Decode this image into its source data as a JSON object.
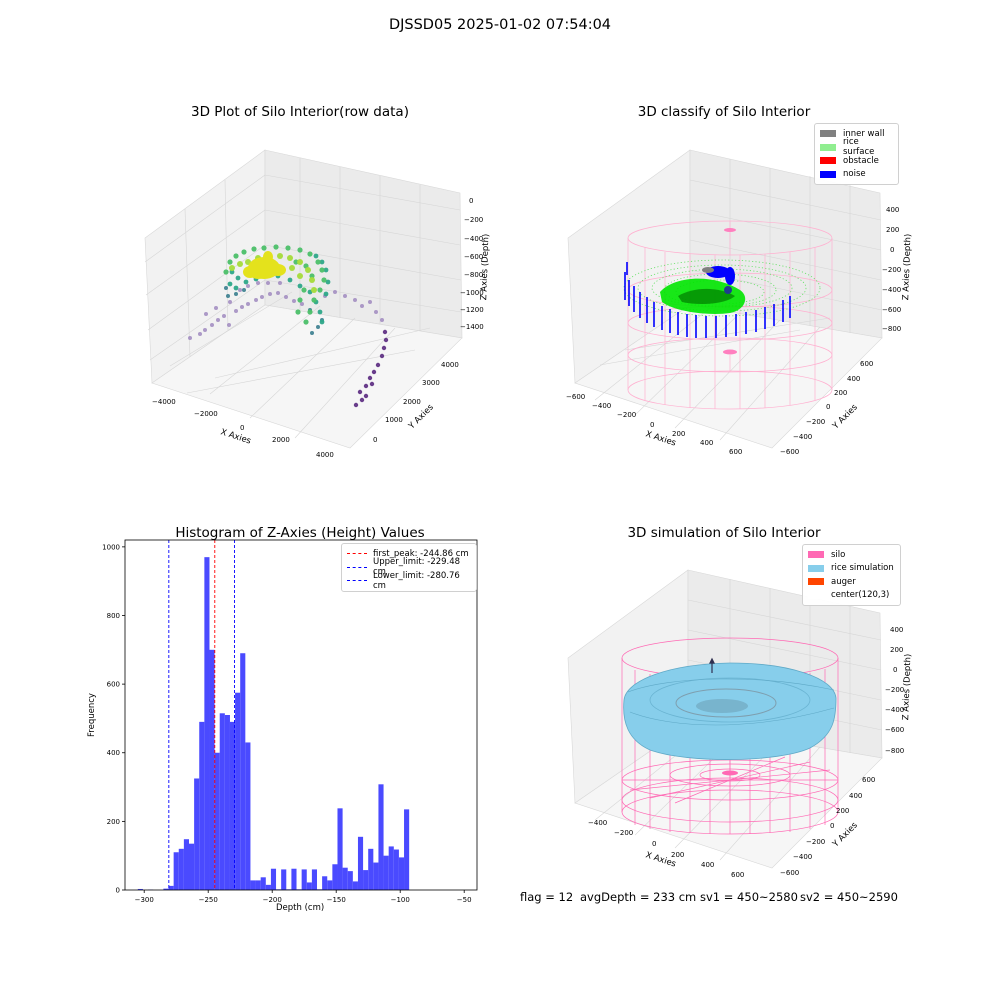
{
  "suptitle": "DJSSD05 2025-01-02 07:54:04",
  "panels": {
    "raw": {
      "title": "3D Plot of Silo Interior(row data)",
      "xlabel": "X Axies",
      "ylabel": "Y Axies",
      "zlabel": "Z Axies (Depth)",
      "xticks": [
        "−4000",
        "−2000",
        "0",
        "2000",
        "4000"
      ],
      "yticks": [
        "0",
        "1000",
        "2000",
        "3000",
        "4000"
      ],
      "zticks": [
        "0",
        "−200",
        "−400",
        "−600",
        "−800",
        "−1000",
        "−1200",
        "−1400"
      ]
    },
    "classify": {
      "title": "3D classify of Silo Interior",
      "xlabel": "X Axies",
      "ylabel": "Y Axies",
      "zlabel": "Z Axies (Depth)",
      "xticks": [
        "−600",
        "−400",
        "−200",
        "0",
        "200",
        "400",
        "600"
      ],
      "yticks": [
        "−600",
        "−400",
        "−200",
        "0",
        "200",
        "400",
        "600"
      ],
      "zticks": [
        "400",
        "200",
        "0",
        "−200",
        "−400",
        "−600",
        "−800"
      ],
      "legend": [
        {
          "label": "inner wall",
          "color": "#808080"
        },
        {
          "label": "rice surface",
          "color": "#90ee90"
        },
        {
          "label": "obstacle",
          "color": "#ff0000"
        },
        {
          "label": "noise",
          "color": "#0000ff"
        }
      ]
    },
    "simulation": {
      "title": "3D simulation of Silo Interior",
      "xlabel": "X Axies",
      "ylabel": "Y Axies",
      "zlabel": "Z Axies (Depth)",
      "xticks": [
        "−400",
        "−200",
        "0",
        "200",
        "400",
        "600"
      ],
      "yticks": [
        "−600",
        "−400",
        "−200",
        "0",
        "200",
        "400",
        "600"
      ],
      "zticks": [
        "400",
        "200",
        "0",
        "−200",
        "−400",
        "−600",
        "−800"
      ],
      "legend": [
        {
          "label": "silo",
          "color": "#ff69b4"
        },
        {
          "label": "rice simulation",
          "color": "#87ceeb"
        },
        {
          "label": "auger",
          "color": "#ff4500"
        },
        {
          "label": "center(120,3)",
          "color": "#ffffff"
        }
      ]
    }
  },
  "footer": {
    "flag": "flag = 12",
    "avg": "avgDepth = 233 cm",
    "sv1": "sv1 = 450~2580",
    "sv2": "sv2 = 450~2590"
  },
  "chart_data": [
    {
      "type": "histogram",
      "title": "Histogram of Z-Axies (Height) Values",
      "xlabel": "Depth (cm)",
      "ylabel": "Frequency",
      "xlim": [
        -315,
        -40
      ],
      "ylim": [
        0,
        1020
      ],
      "xticks": [
        -300,
        -250,
        -200,
        -150,
        -100,
        -50
      ],
      "yticks": [
        0,
        200,
        400,
        600,
        800,
        1000
      ],
      "bin_width": 4,
      "bar_color": "#4a4aff",
      "bins": [
        [
          -305,
          3
        ],
        [
          -297,
          1
        ],
        [
          -285,
          4
        ],
        [
          -281,
          12
        ],
        [
          -277,
          110
        ],
        [
          -273,
          120
        ],
        [
          -269,
          148
        ],
        [
          -265,
          135
        ],
        [
          -261,
          325
        ],
        [
          -257,
          490
        ],
        [
          -253,
          970
        ],
        [
          -249,
          700
        ],
        [
          -245,
          400
        ],
        [
          -241,
          515
        ],
        [
          -237,
          510
        ],
        [
          -233,
          490
        ],
        [
          -229,
          575
        ],
        [
          -225,
          690
        ],
        [
          -221,
          430
        ],
        [
          -217,
          28
        ],
        [
          -213,
          28
        ],
        [
          -209,
          37
        ],
        [
          -205,
          15
        ],
        [
          -201,
          62
        ],
        [
          -197,
          2
        ],
        [
          -193,
          60
        ],
        [
          -189,
          2
        ],
        [
          -185,
          62
        ],
        [
          -181,
          2
        ],
        [
          -177,
          60
        ],
        [
          -173,
          22
        ],
        [
          -169,
          60
        ],
        [
          -165,
          2
        ],
        [
          -161,
          40
        ],
        [
          -157,
          28
        ],
        [
          -153,
          75
        ],
        [
          -149,
          238
        ],
        [
          -145,
          65
        ],
        [
          -141,
          55
        ],
        [
          -137,
          25
        ],
        [
          -133,
          155
        ],
        [
          -129,
          58
        ],
        [
          -125,
          120
        ],
        [
          -121,
          80
        ],
        [
          -117,
          308
        ],
        [
          -113,
          100
        ],
        [
          -109,
          127
        ],
        [
          -105,
          118
        ],
        [
          -101,
          95
        ],
        [
          -97,
          235
        ]
      ],
      "reference_lines": [
        {
          "label": "first_peak: -244.86 cm",
          "x": -244.86,
          "color": "#ff0000"
        },
        {
          "label": "Upper_limit: -229.48 cm",
          "x": -229.48,
          "color": "#0000ff"
        },
        {
          "label": "Lower_limit: -280.76 cm",
          "x": -280.76,
          "color": "#0000ff"
        }
      ],
      "legend_position": "top-right"
    }
  ]
}
